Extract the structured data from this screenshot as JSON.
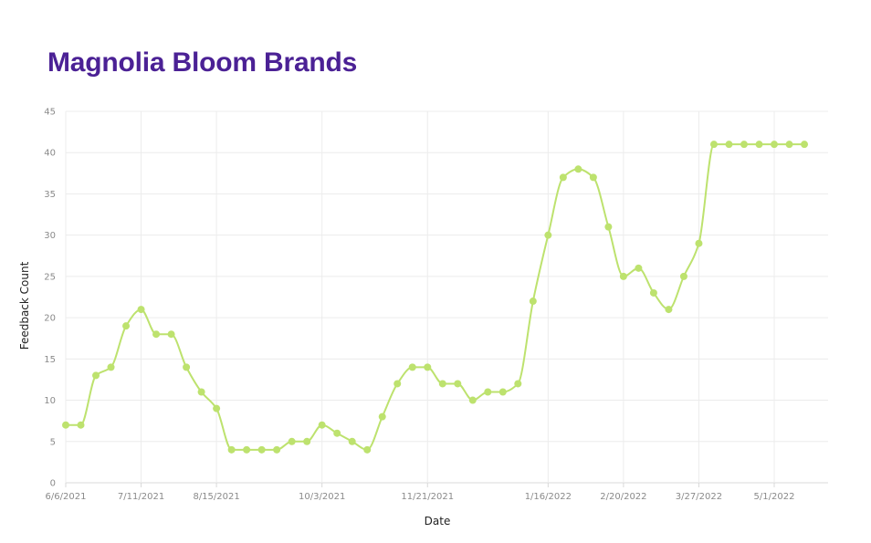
{
  "title": "Magnolia Bloom Brands",
  "colors": {
    "title": "#4b2195",
    "line": "#bde26e",
    "marker": "#bde26e",
    "grid": "#ececec"
  },
  "chart_data": {
    "type": "line",
    "title": "Magnolia Bloom Brands",
    "xlabel": "Date",
    "ylabel": "Feedback Count",
    "ylim": [
      0,
      45
    ],
    "yticks": [
      0,
      5,
      10,
      15,
      20,
      25,
      30,
      35,
      40,
      45
    ],
    "grid": true,
    "legend": "none",
    "x_tick_labels": [
      "6/6/2021",
      "7/11/2021",
      "8/15/2021",
      "10/3/2021",
      "11/21/2021",
      "1/16/2022",
      "2/20/2022",
      "3/27/2022",
      "5/1/2022"
    ],
    "x_tick_dates": [
      "2021-06-06",
      "2021-07-11",
      "2021-08-15",
      "2021-10-03",
      "2021-11-21",
      "2022-01-16",
      "2022-02-20",
      "2022-03-27",
      "2022-05-01"
    ],
    "series": [
      {
        "x": [
          "2021-06-06",
          "2021-06-13",
          "2021-06-20",
          "2021-06-27",
          "2021-07-04",
          "2021-07-11",
          "2021-07-18",
          "2021-07-25",
          "2021-08-01",
          "2021-08-08",
          "2021-08-15",
          "2021-08-22",
          "2021-08-29",
          "2021-09-05",
          "2021-09-12",
          "2021-09-19",
          "2021-09-26",
          "2021-10-03",
          "2021-10-10",
          "2021-10-17",
          "2021-10-24",
          "2021-10-31",
          "2021-11-07",
          "2021-11-14",
          "2021-11-21",
          "2021-11-28",
          "2021-12-05",
          "2021-12-12",
          "2021-12-19",
          "2021-12-26",
          "2022-01-02",
          "2022-01-09",
          "2022-01-16",
          "2022-01-23",
          "2022-01-30",
          "2022-02-06",
          "2022-02-13",
          "2022-02-20",
          "2022-02-27",
          "2022-03-06",
          "2022-03-13",
          "2022-03-20",
          "2022-03-27",
          "2022-04-03",
          "2022-04-10",
          "2022-04-17",
          "2022-04-24",
          "2022-05-01",
          "2022-05-08",
          "2022-05-15"
        ],
        "values": [
          7,
          7,
          13,
          14,
          19,
          21,
          18,
          18,
          14,
          11,
          9,
          4,
          4,
          4,
          4,
          5,
          5,
          7,
          6,
          5,
          4,
          8,
          12,
          14,
          14,
          12,
          12,
          10,
          11,
          11,
          12,
          22,
          30,
          37,
          38,
          37,
          31,
          25,
          26,
          23,
          21,
          25,
          29,
          41,
          41,
          41,
          41,
          41,
          41,
          41
        ]
      }
    ]
  }
}
